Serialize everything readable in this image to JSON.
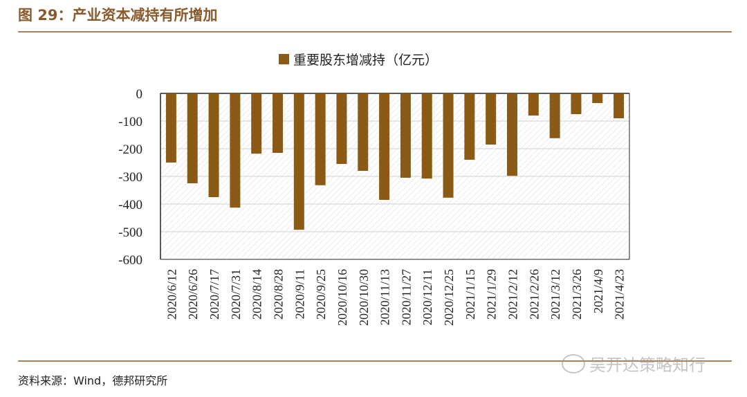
{
  "figure": {
    "title": "图 29：产业资本减持有所增加",
    "source": "资料来源：Wind，德邦研究所",
    "watermark": "吴开达策略知行"
  },
  "colors": {
    "bar": "#8b5a14",
    "accent": "#8a5a2b",
    "rule": "#b0805a"
  },
  "chart_data": {
    "type": "bar",
    "title": "",
    "xlabel": "",
    "ylabel": "",
    "ylim": [
      -600,
      0
    ],
    "yticks": [
      0,
      -100,
      -200,
      -300,
      -400,
      -500,
      -600
    ],
    "grid": true,
    "legend": {
      "position": "top-center",
      "entries": [
        "重要股东增减持（亿元）"
      ]
    },
    "categories": [
      "2020/6/12",
      "2020/6/26",
      "2020/7/17",
      "2020/7/31",
      "2020/8/14",
      "2020/8/28",
      "2020/9/11",
      "2020/9/25",
      "2020/10/16",
      "2020/10/30",
      "2020/11/13",
      "2020/11/27",
      "2020/12/11",
      "2020/12/25",
      "2021/1/15",
      "2021/1/29",
      "2021/2/12",
      "2021/2/26",
      "2021/3/12",
      "2021/3/26",
      "2021/4/9",
      "2021/4/23"
    ],
    "series": [
      {
        "name": "重要股东增减持（亿元）",
        "values": [
          -250,
          -325,
          -375,
          -413,
          -218,
          -215,
          -493,
          -332,
          -255,
          -280,
          -385,
          -305,
          -308,
          -377,
          -240,
          -185,
          -298,
          -80,
          -162,
          -75,
          -35,
          -90
        ]
      }
    ]
  }
}
